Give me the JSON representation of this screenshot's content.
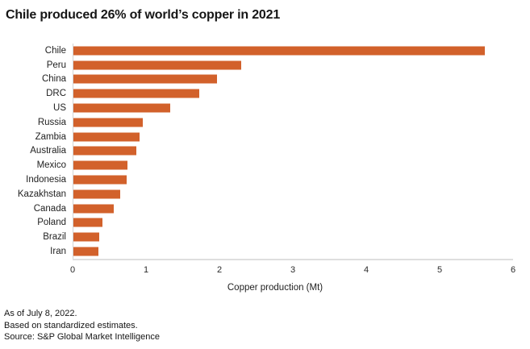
{
  "title": "Chile produced 26% of world’s copper in 2021",
  "chart_data": {
    "type": "bar",
    "orientation": "horizontal",
    "title": "Chile produced 26% of world’s copper in 2021",
    "categories": [
      "Chile",
      "Peru",
      "China",
      "DRC",
      "US",
      "Russia",
      "Zambia",
      "Australia",
      "Mexico",
      "Indonesia",
      "Kazakhstan",
      "Canada",
      "Poland",
      "Brazil",
      "Iran"
    ],
    "values": [
      5.61,
      2.29,
      1.96,
      1.72,
      1.32,
      0.95,
      0.9,
      0.86,
      0.74,
      0.73,
      0.64,
      0.55,
      0.4,
      0.35,
      0.34
    ],
    "xlabel": "Copper production (Mt)",
    "xlim": [
      0,
      6
    ],
    "x_ticks": [
      "0",
      "1",
      "2",
      "3",
      "4",
      "5",
      "6"
    ],
    "grid": false,
    "legend": "none",
    "bar_color": "#d2612b",
    "axis_color": "#d9d9d9"
  },
  "footnotes": {
    "line1": "As of July 8, 2022.",
    "line2": "Based on standardized estimates.",
    "line3": "Source: S&P Global Market Intelligence"
  }
}
